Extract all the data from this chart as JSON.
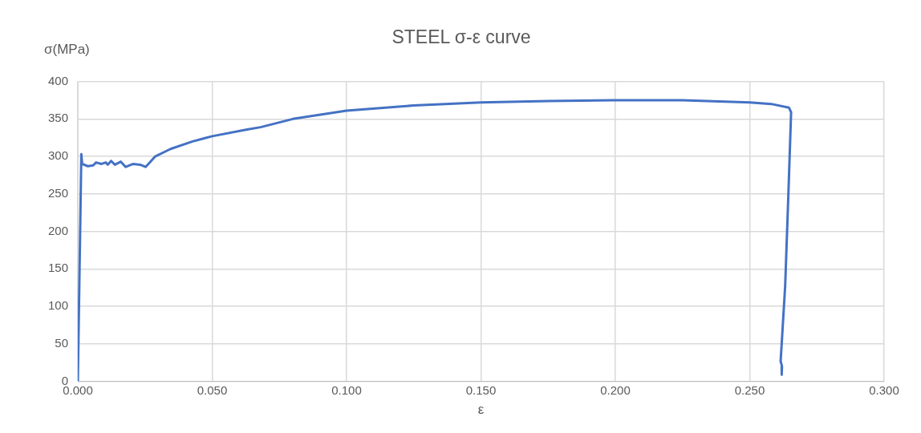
{
  "chart_data": {
    "type": "line",
    "title": "STEEL σ-ε curve",
    "xlabel": "ε",
    "ylabel": "σ(MPa)",
    "xlim": [
      0,
      0.3
    ],
    "xticks": [
      {
        "value": 0,
        "label": "0.000"
      },
      {
        "value": 0.05,
        "label": "0.050"
      },
      {
        "value": 0.1,
        "label": "0.100"
      },
      {
        "value": 0.15,
        "label": "0.150"
      },
      {
        "value": 0.2,
        "label": "0.200"
      },
      {
        "value": 0.25,
        "label": "0.250"
      },
      {
        "value": 0.3,
        "label": "0.300"
      }
    ],
    "ylim": [
      0,
      400
    ],
    "yticks": [
      0,
      50,
      100,
      150,
      200,
      250,
      300,
      350,
      400
    ],
    "grid": true,
    "legend": false,
    "marker": "none",
    "line_style": "solid",
    "series": [
      {
        "color": "#4472c4",
        "x": [
          0,
          0.0013,
          0.0016,
          0.0037,
          0.0057,
          0.0068,
          0.0088,
          0.0104,
          0.0111,
          0.0124,
          0.0138,
          0.016,
          0.0178,
          0.0206,
          0.0232,
          0.0252,
          0.0268,
          0.0288,
          0.0345,
          0.0427,
          0.05,
          0.063,
          0.068,
          0.08,
          0.1,
          0.125,
          0.15,
          0.175,
          0.2,
          0.21,
          0.225,
          0.25,
          0.258,
          0.2646,
          0.2654,
          0.2644,
          0.2632,
          0.262,
          0.2615,
          0.262,
          0.2619
        ],
        "values": [
          0,
          303,
          290,
          287,
          288,
          292,
          290,
          292,
          289,
          294,
          289,
          293,
          286,
          290,
          289,
          286,
          292,
          300,
          310,
          320,
          327,
          336,
          339,
          350,
          361,
          368,
          372,
          374,
          375,
          375,
          375,
          372,
          370,
          365,
          359,
          251,
          128,
          56,
          27,
          20,
          9
        ]
      }
    ]
  }
}
